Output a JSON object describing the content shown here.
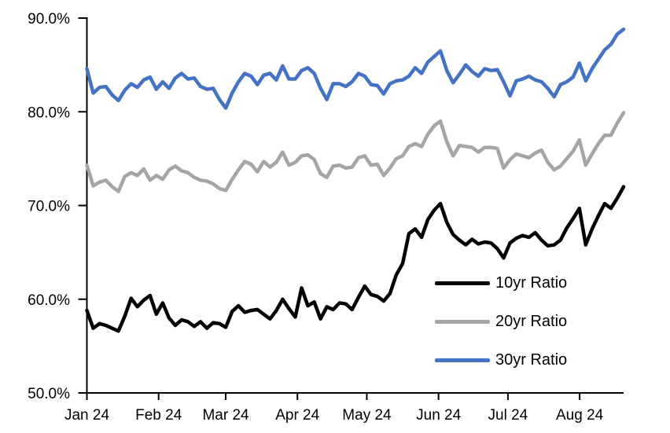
{
  "chart_data": {
    "type": "line",
    "title": "",
    "grid": false,
    "x_axis": {
      "tick_labels": [
        "Jan 24",
        "Feb 24",
        "Mar 24",
        "Apr 24",
        "May 24",
        "Jun 24",
        "Jul 24",
        "Aug 24"
      ],
      "month_tick_day_offsets": [
        0,
        31,
        60,
        91,
        121,
        152,
        182,
        213
      ],
      "total_days_span": 232
    },
    "y_axis": {
      "tick_labels": [
        "90.0%",
        "80.0%",
        "70.0%",
        "60.0%",
        "50.0%"
      ],
      "min": 50,
      "max": 90,
      "unit": "%"
    },
    "legend": {
      "position": "inside-lower-right",
      "entries": [
        "10yr Ratio",
        "20yr Ratio",
        "30yr Ratio"
      ]
    },
    "series": [
      {
        "name": "10yr Ratio",
        "color": "#000000",
        "values": [
          58.8,
          56.9,
          57.4,
          57.2,
          56.9,
          56.6,
          58.2,
          60.1,
          59.2,
          59.9,
          60.4,
          58.4,
          59.6,
          58.0,
          57.2,
          57.8,
          57.6,
          57.1,
          57.6,
          56.9,
          57.5,
          57.4,
          57.0,
          58.7,
          59.3,
          58.6,
          58.8,
          58.9,
          58.4,
          57.9,
          58.8,
          60.0,
          59.0,
          58.1,
          61.2,
          59.3,
          59.7,
          57.9,
          59.2,
          58.9,
          59.6,
          59.5,
          58.9,
          60.2,
          61.4,
          60.5,
          60.3,
          59.8,
          60.6,
          62.6,
          63.8,
          67.0,
          67.5,
          66.6,
          68.5,
          69.5,
          70.2,
          68.2,
          66.9,
          66.3,
          65.8,
          66.4,
          65.9,
          66.1,
          66.0,
          65.4,
          64.4,
          66.0,
          66.5,
          66.8,
          66.6,
          67.1,
          66.3,
          65.7,
          65.8,
          66.3,
          67.6,
          68.6,
          69.7,
          65.8,
          67.5,
          68.9,
          70.2,
          69.7,
          70.8,
          72.0
        ]
      },
      {
        "name": "20yr Ratio",
        "color": "#A5A5A5",
        "values": [
          74.3,
          72.1,
          72.5,
          72.7,
          72.0,
          71.5,
          73.1,
          73.5,
          73.2,
          73.9,
          72.7,
          73.2,
          72.8,
          73.8,
          74.2,
          73.7,
          73.5,
          73.0,
          72.7,
          72.6,
          72.3,
          71.8,
          71.6,
          72.8,
          73.8,
          74.7,
          74.4,
          73.6,
          74.7,
          74.1,
          74.6,
          75.7,
          74.3,
          74.6,
          75.3,
          75.4,
          74.9,
          73.4,
          73.0,
          74.2,
          74.3,
          74.0,
          74.1,
          75.1,
          75.3,
          74.3,
          74.4,
          73.2,
          74.0,
          75.0,
          75.3,
          76.3,
          76.6,
          76.3,
          77.6,
          78.5,
          79.0,
          76.8,
          75.3,
          76.4,
          76.3,
          76.2,
          75.7,
          76.2,
          76.2,
          76.1,
          74.0,
          74.9,
          75.5,
          75.3,
          75.1,
          75.6,
          75.9,
          74.6,
          73.8,
          74.2,
          75.0,
          75.8,
          77.0,
          74.3,
          75.5,
          76.6,
          77.5,
          77.5,
          78.8,
          79.9
        ]
      },
      {
        "name": "30yr Ratio",
        "color": "#4472C4",
        "values": [
          84.6,
          82.0,
          82.6,
          82.7,
          81.8,
          81.2,
          82.3,
          83.0,
          82.6,
          83.4,
          83.7,
          82.4,
          83.2,
          82.5,
          83.6,
          84.1,
          83.5,
          83.6,
          82.7,
          82.4,
          82.5,
          81.3,
          80.4,
          82.0,
          83.2,
          84.1,
          83.8,
          82.9,
          83.9,
          84.1,
          83.4,
          84.9,
          83.5,
          83.5,
          84.4,
          84.7,
          84.1,
          82.5,
          81.3,
          83.0,
          83.0,
          82.7,
          83.2,
          84.1,
          83.8,
          82.9,
          82.8,
          81.9,
          83.0,
          83.3,
          83.4,
          83.8,
          84.7,
          84.1,
          85.3,
          85.9,
          86.5,
          84.4,
          83.1,
          84.0,
          85.0,
          84.3,
          83.8,
          84.6,
          84.4,
          84.5,
          83.2,
          81.7,
          83.3,
          83.5,
          83.8,
          83.4,
          83.2,
          82.5,
          81.6,
          82.9,
          83.2,
          83.7,
          85.2,
          83.3,
          84.6,
          85.6,
          86.6,
          87.2,
          88.3,
          88.8
        ]
      }
    ]
  }
}
